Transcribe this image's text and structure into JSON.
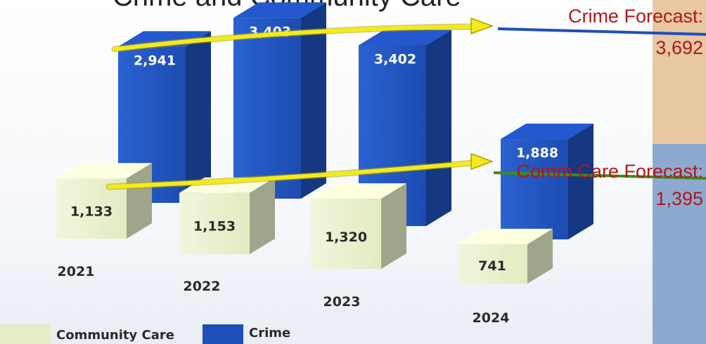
{
  "chart_data": {
    "type": "bar",
    "title": "Crime and Community Care",
    "categories": [
      "2021",
      "2022",
      "2023",
      "2024"
    ],
    "series": [
      {
        "name": "Community Care",
        "values": [
          1133,
          1153,
          1320,
          741
        ],
        "color": "#e3ecc6"
      },
      {
        "name": "Crime",
        "values": [
          2941,
          3403,
          3402,
          1888
        ],
        "color": "#1f4fb8"
      }
    ],
    "value_labels": {
      "Community Care": [
        "1,133",
        "1,153",
        "1,320",
        "741"
      ],
      "Crime": [
        "2,941",
        "3,403",
        "3,402",
        "1,888"
      ]
    },
    "forecasts": [
      {
        "label": "Crime Forecast:",
        "value": 3692,
        "value_label": "3,692",
        "color": "#1f4fb8"
      },
      {
        "label": "Comm Care Forecast:",
        "value": 1395,
        "value_label": "1,395",
        "color": "#3e8a1e"
      }
    ],
    "trend_arrow_color": "#f2ea1c",
    "label_color": "#b01818",
    "legend": {
      "position": "bottom-left",
      "entries": [
        "Community Care",
        "Crime"
      ]
    },
    "grid": false,
    "ylim": [
      0,
      4000
    ]
  }
}
